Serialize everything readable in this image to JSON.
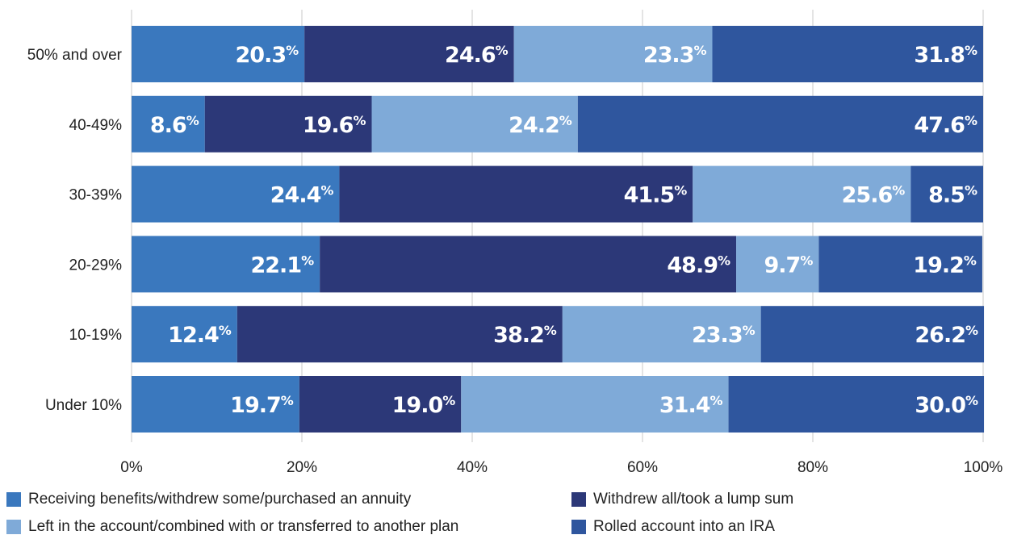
{
  "chart_data": {
    "type": "bar",
    "orientation": "horizontal",
    "stacked": true,
    "categories": [
      "50% and over",
      "40-49%",
      "30-39%",
      "20-29%",
      "10-19%",
      "Under 10%"
    ],
    "series": [
      {
        "name": "Receiving benefits/withdrew some/purchased an annuity",
        "color": "#3a78be",
        "values": [
          20.3,
          8.6,
          24.4,
          22.1,
          12.4,
          19.7
        ]
      },
      {
        "name": "Withdrew all/took a lump sum",
        "color": "#2c3878",
        "values": [
          24.6,
          19.6,
          41.5,
          48.9,
          38.2,
          19.0
        ]
      },
      {
        "name": "Left in the account/combined with or transferred to another plan",
        "color": "#7faad8",
        "values": [
          23.3,
          24.2,
          25.6,
          9.7,
          23.3,
          31.4
        ]
      },
      {
        "name": "Rolled account into an IRA",
        "color": "#2f569e",
        "values": [
          31.8,
          47.6,
          8.5,
          19.2,
          26.2,
          30.0
        ]
      }
    ],
    "x_ticks": [
      "0%",
      "20%",
      "40%",
      "60%",
      "80%",
      "100%"
    ],
    "xlim": [
      0,
      100
    ],
    "grid": "vertical",
    "legend_position": "bottom",
    "value_suffix": "%",
    "title": "",
    "xlabel": "",
    "ylabel": ""
  }
}
